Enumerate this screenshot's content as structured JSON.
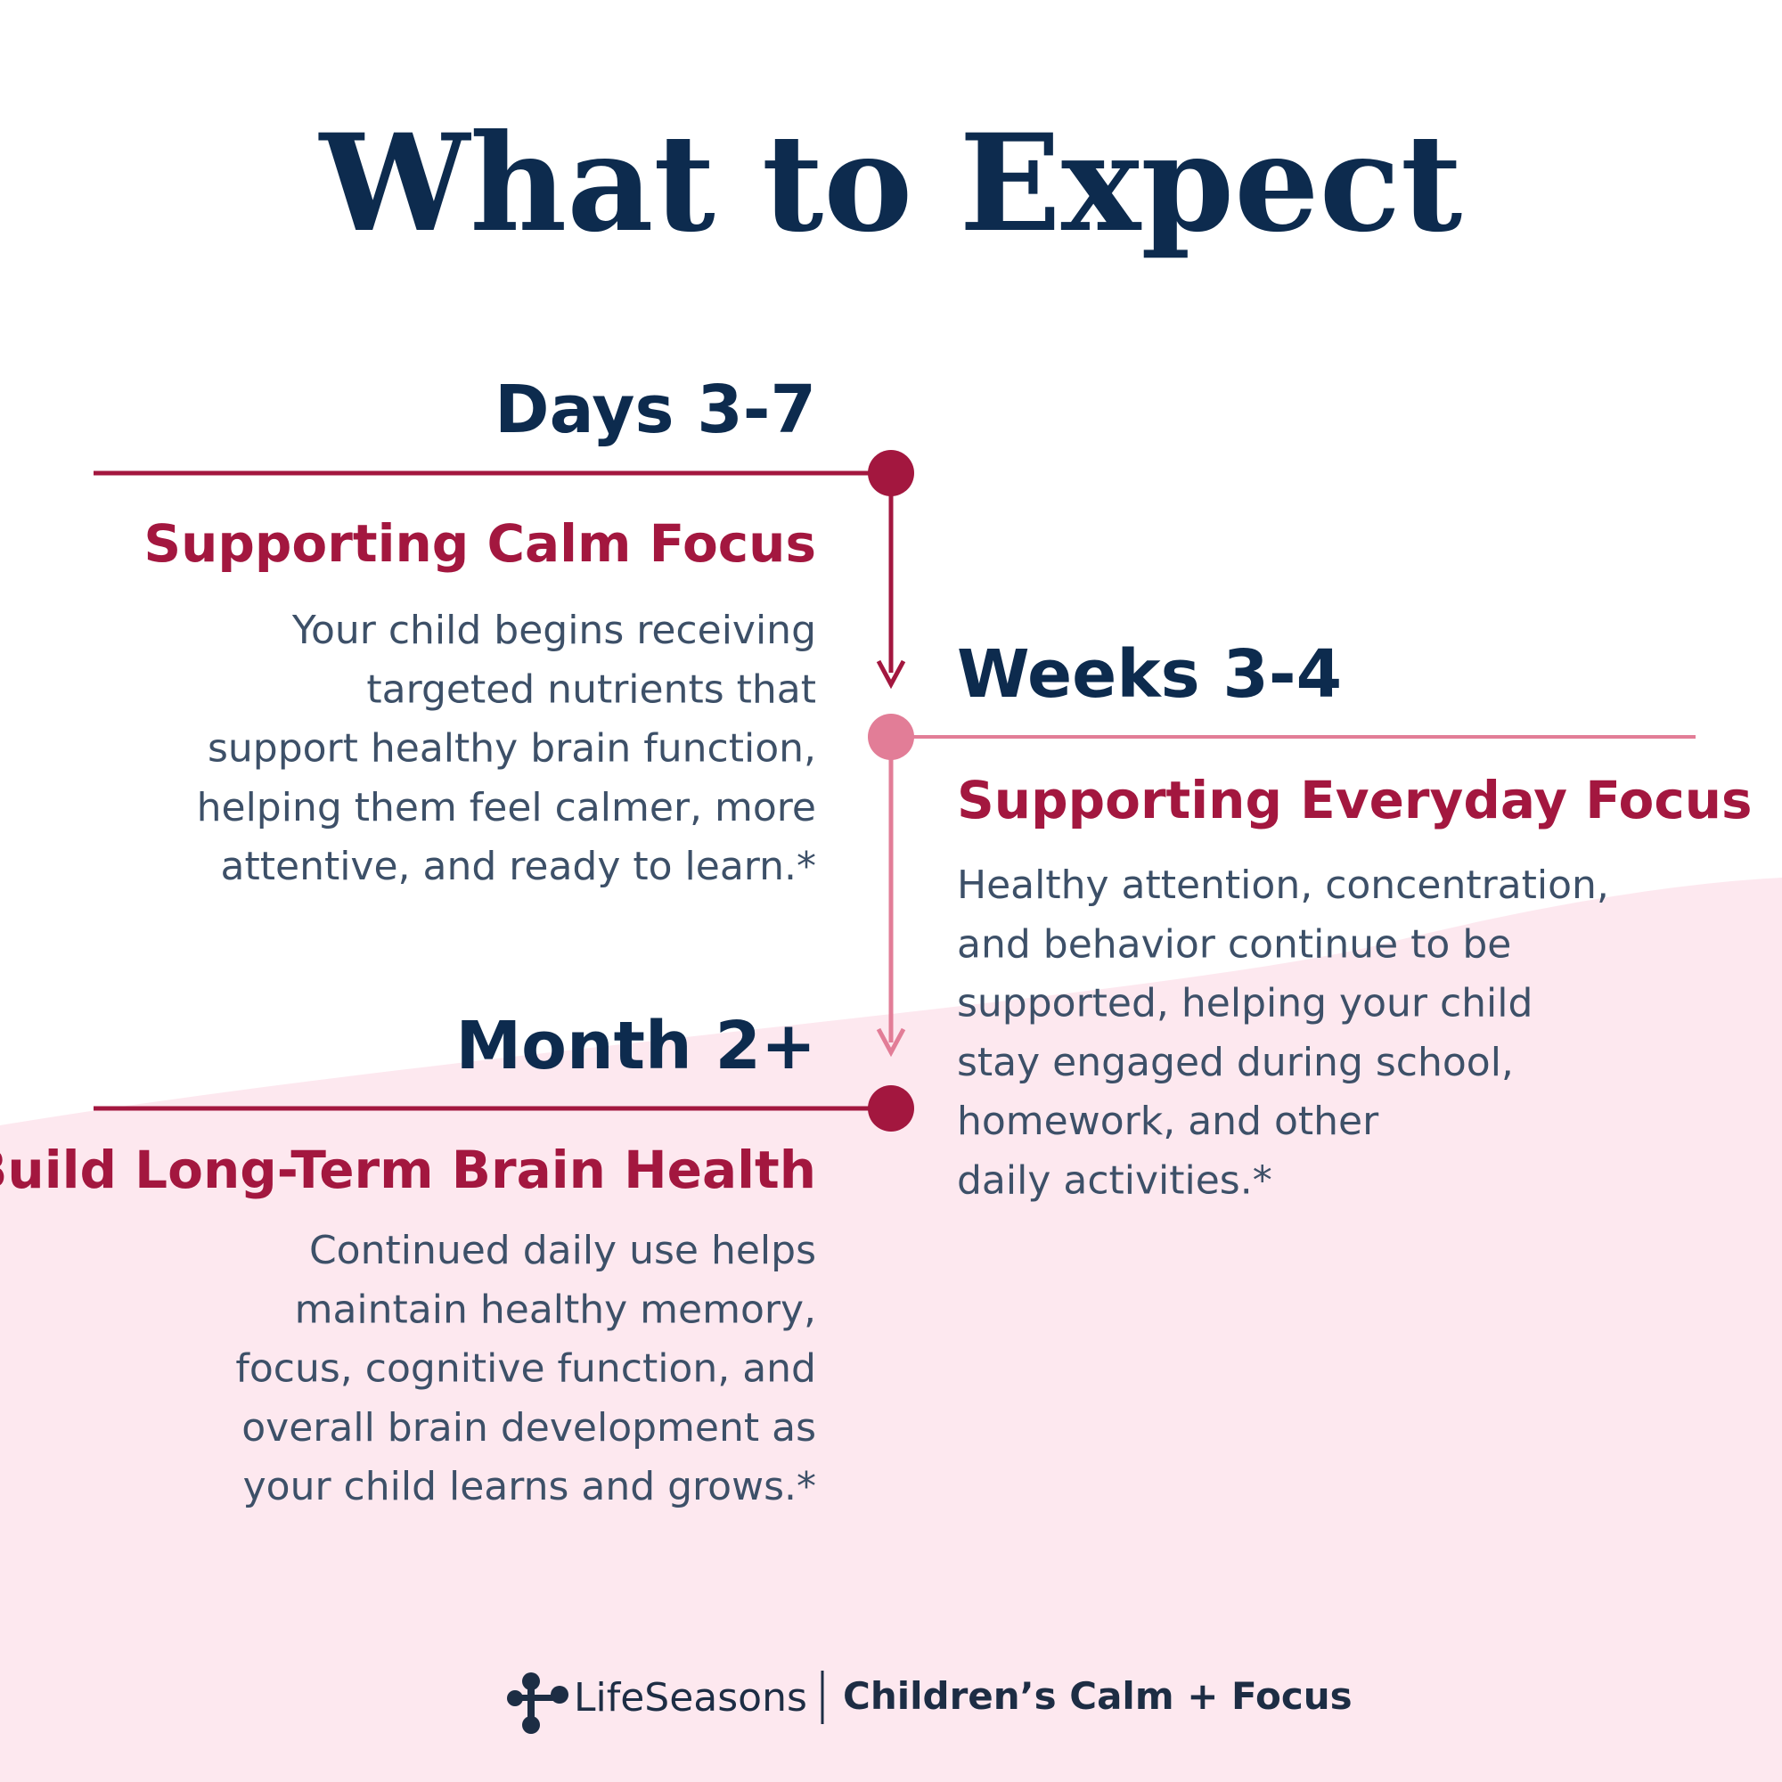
{
  "title": "What to Expect",
  "milestones": [
    {
      "period": "Days 3-7",
      "heading": "Supporting Calm Focus",
      "body": [
        "Your child begins receiving",
        "targeted nutrients that",
        "support healthy brain function,",
        "helping them feel calmer, more",
        "attentive, and ready to learn.*"
      ]
    },
    {
      "period": "Weeks 3-4",
      "heading": "Supporting Everyday Focus",
      "body": [
        "Healthy attention, concentration,",
        "and behavior continue to be",
        "supported, helping your child",
        "stay engaged during school,",
        "homework, and other",
        "daily activities.*"
      ]
    },
    {
      "period": "Month 2+",
      "heading": "Build Long-Term Brain Health",
      "body": [
        "Continued daily use helps",
        "maintain healthy memory,",
        "focus, cognitive function, and",
        "overall brain development as",
        "your child learns and grows.*"
      ]
    }
  ],
  "footer": {
    "brand": "LifeSeasons",
    "product": "Children’s Calm + Focus"
  }
}
